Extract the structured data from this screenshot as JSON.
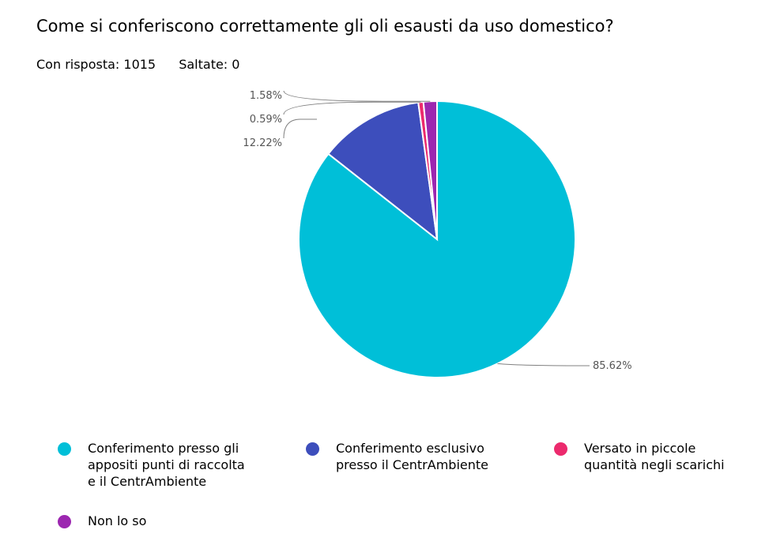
{
  "header": {
    "title": "Come si conferiscono correttamente gli oli esausti da uso domestico?",
    "answered": "Con risposta: 1015",
    "skipped": "Saltate: 0"
  },
  "chart_data": {
    "type": "pie",
    "title": "",
    "start_angle_deg": 0,
    "direction": "clockwise",
    "slices": [
      {
        "label": "Conferimento presso gli\nappositi punti di raccolta\ne il CentrAmbiente",
        "value": 85.62,
        "display": "85.62%",
        "color": "#00bfd8"
      },
      {
        "label": "Conferimento esclusivo\npresso il CentrAmbiente",
        "value": 12.22,
        "display": "12.22%",
        "color": "#3d4ebc"
      },
      {
        "label": "Versato in piccole\nquantità negli scarichi",
        "value": 0.59,
        "display": "0.59%",
        "color": "#ec2a6d"
      },
      {
        "label": "Non lo so",
        "value": 1.58,
        "display": "1.58%",
        "color": "#9c27b0"
      }
    ],
    "legend_position": "bottom"
  }
}
